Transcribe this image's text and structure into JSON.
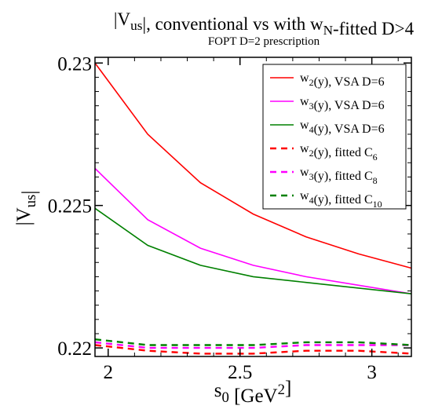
{
  "chart_data": {
    "type": "line",
    "title": "|V_us|, conventional vs with w_N-fitted D>4",
    "subtitle": "FOPT D=2 prescription",
    "xlabel": "s_0 [GeV^2]",
    "ylabel": "|V_us|",
    "xlim": [
      1.95,
      3.15
    ],
    "ylim": [
      0.2197,
      0.2302
    ],
    "xticks": [
      2,
      2.5,
      3
    ],
    "xtick_labels": [
      "2",
      "2.5",
      "3"
    ],
    "yticks": [
      0.22,
      0.225,
      0.23
    ],
    "ytick_labels": [
      "0.22",
      "0.225",
      "0.23"
    ],
    "grid": false,
    "legend_position": "top-right",
    "x": [
      1.95,
      2.15,
      2.35,
      2.55,
      2.75,
      2.95,
      3.15
    ],
    "series": [
      {
        "name": "w_2(y), VSA D=6",
        "color": "#ff0000",
        "style": "solid",
        "values": [
          0.23,
          0.2275,
          0.2258,
          0.2247,
          0.2239,
          0.2233,
          0.2228
        ]
      },
      {
        "name": "w_3(y), VSA D=6",
        "color": "#ff00ff",
        "style": "solid",
        "values": [
          0.2263,
          0.2245,
          0.2235,
          0.2229,
          0.2225,
          0.2222,
          0.2219
        ]
      },
      {
        "name": "w_4(y), VSA D=6",
        "color": "#008000",
        "style": "solid",
        "values": [
          0.2249,
          0.2236,
          0.2229,
          0.2225,
          0.2223,
          0.2221,
          0.2219
        ]
      },
      {
        "name": "w_2(y), fitted C_6",
        "color": "#ff0000",
        "style": "dashed",
        "values": [
          0.2201,
          0.2199,
          0.2198,
          0.2198,
          0.2199,
          0.2199,
          0.2198
        ]
      },
      {
        "name": "w_3(y), fitted C_8",
        "color": "#ff00ff",
        "style": "dashed",
        "values": [
          0.2202,
          0.22,
          0.22,
          0.22,
          0.2201,
          0.2201,
          0.2201
        ]
      },
      {
        "name": "w_4(y), fitted C_10",
        "color": "#008000",
        "style": "dashed",
        "values": [
          0.2203,
          0.2201,
          0.2201,
          0.2201,
          0.2202,
          0.2202,
          0.2201
        ]
      }
    ]
  }
}
